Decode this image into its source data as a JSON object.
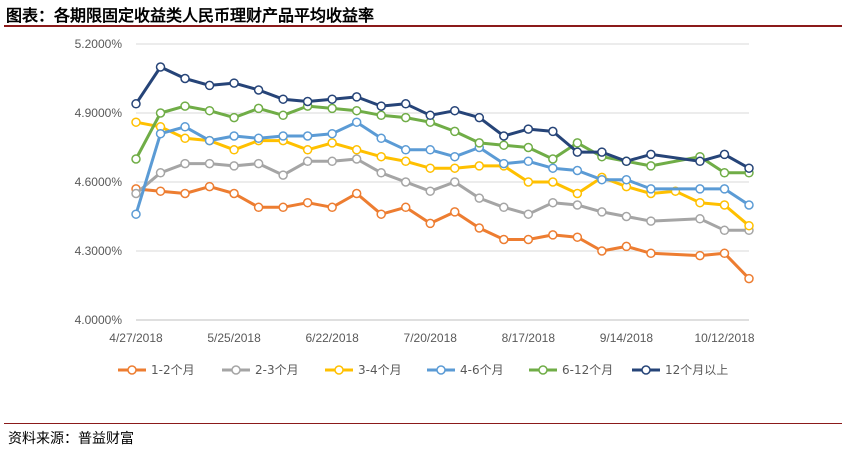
{
  "title": "图表：各期限固定收益类人民币理财产品平均收益率",
  "source": "资料来源：普益财富",
  "chart_data": {
    "type": "line",
    "title": "图表：各期限固定收益类人民币理财产品平均收益率",
    "xlabel": "",
    "ylabel": "",
    "ylim": [
      4.0,
      5.2
    ],
    "y_ticks": [
      "4.0000%",
      "4.3000%",
      "4.6000%",
      "4.9000%",
      "5.2000%"
    ],
    "x_tick_labels": [
      "4/27/2018",
      "5/25/2018",
      "6/22/2018",
      "7/20/2018",
      "8/17/2018",
      "9/14/2018",
      "10/12/2018"
    ],
    "x_tick_indices": [
      0,
      4,
      8,
      12,
      16,
      20,
      24
    ],
    "grid": "horizontal",
    "legend_position": "bottom",
    "x": [
      "4/27/2018",
      "5/4/2018",
      "5/11/2018",
      "5/18/2018",
      "5/25/2018",
      "6/1/2018",
      "6/8/2018",
      "6/15/2018",
      "6/22/2018",
      "6/29/2018",
      "7/6/2018",
      "7/13/2018",
      "7/20/2018",
      "7/27/2018",
      "8/3/2018",
      "8/10/2018",
      "8/17/2018",
      "8/24/2018",
      "8/31/2018",
      "9/7/2018",
      "9/14/2018",
      "9/21/2018",
      "9/28/2018",
      "10/5/2018",
      "10/12/2018",
      "10/19/2018"
    ],
    "series": [
      {
        "name": "1-2个月",
        "color": "#ed7d31",
        "values": [
          4.57,
          4.56,
          4.55,
          4.58,
          4.55,
          4.49,
          4.49,
          4.51,
          4.49,
          4.55,
          4.46,
          4.49,
          4.42,
          4.47,
          4.4,
          4.35,
          4.35,
          4.37,
          4.36,
          4.3,
          4.32,
          4.29,
          null,
          4.28,
          4.29,
          4.18
        ]
      },
      {
        "name": "2-3个月",
        "color": "#a5a5a5",
        "values": [
          4.55,
          4.64,
          4.68,
          4.68,
          4.67,
          4.68,
          4.63,
          4.69,
          4.69,
          4.7,
          4.64,
          4.6,
          4.56,
          4.6,
          4.53,
          4.49,
          4.46,
          4.51,
          4.5,
          4.47,
          4.45,
          4.43,
          null,
          4.44,
          4.39,
          4.39
        ]
      },
      {
        "name": "3-4个月",
        "color": "#ffc000",
        "values": [
          4.86,
          4.84,
          4.79,
          4.78,
          4.74,
          4.78,
          4.78,
          4.74,
          4.77,
          4.74,
          4.71,
          4.69,
          4.66,
          4.66,
          4.67,
          4.67,
          4.6,
          4.6,
          4.55,
          4.62,
          4.58,
          4.55,
          4.56,
          4.51,
          4.5,
          4.41
        ]
      },
      {
        "name": "4-6个月",
        "color": "#5b9bd5",
        "values": [
          4.46,
          4.81,
          4.84,
          4.78,
          4.8,
          4.79,
          4.8,
          4.8,
          4.81,
          4.86,
          4.79,
          4.74,
          4.74,
          4.71,
          4.75,
          4.68,
          4.69,
          4.66,
          4.65,
          4.61,
          4.61,
          4.57,
          null,
          4.57,
          4.57,
          4.5
        ]
      },
      {
        "name": "6-12个月",
        "color": "#70ad47",
        "values": [
          4.7,
          4.9,
          4.93,
          4.91,
          4.88,
          4.92,
          4.89,
          4.93,
          4.92,
          4.91,
          4.89,
          4.88,
          4.86,
          4.82,
          4.77,
          4.76,
          4.75,
          4.7,
          4.77,
          4.71,
          4.69,
          4.67,
          null,
          4.71,
          4.64,
          4.64
        ]
      },
      {
        "name": "12个月以上",
        "color": "#264478",
        "values": [
          4.94,
          5.1,
          5.05,
          5.02,
          5.03,
          5.0,
          4.96,
          4.95,
          4.96,
          4.97,
          4.93,
          4.94,
          4.89,
          4.91,
          4.88,
          4.8,
          4.83,
          4.82,
          4.73,
          4.73,
          4.69,
          4.72,
          null,
          4.69,
          4.72,
          4.66
        ]
      }
    ]
  }
}
